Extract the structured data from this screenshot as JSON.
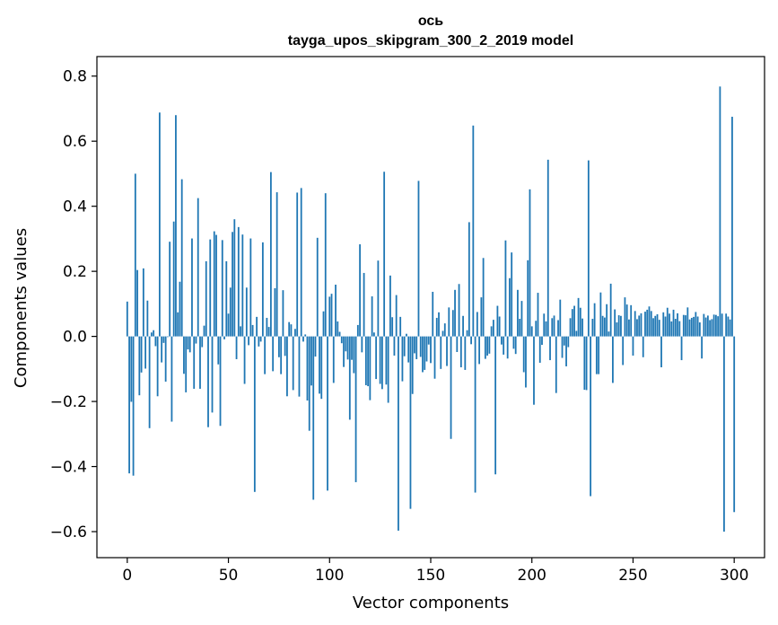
{
  "chart_data": {
    "type": "bar",
    "title_lines": [
      "ось",
      "tayga_upos_skipgram_300_2_2019 model"
    ],
    "xlabel": "Vector components",
    "ylabel": "Components values",
    "xlim": [
      -15,
      315
    ],
    "ylim": [
      -0.68,
      0.86
    ],
    "xticks": [
      0,
      50,
      100,
      150,
      200,
      250,
      300
    ],
    "xtick_labels": [
      "0",
      "50",
      "100",
      "150",
      "200",
      "250",
      "300"
    ],
    "yticks": [
      0.8,
      0.6,
      0.4,
      0.2,
      0.0,
      -0.2,
      -0.4,
      -0.6
    ],
    "ytick_labels": [
      "0.8",
      "0.6",
      "0.4",
      "0.2",
      "0.0",
      "−0.2",
      "−0.4",
      "−0.6"
    ],
    "grid": false,
    "bar_color": "#1f77b4",
    "x_start": 0,
    "values": [
      0.107,
      -0.421,
      -0.201,
      -0.428,
      0.5,
      0.204,
      -0.181,
      -0.111,
      0.209,
      -0.099,
      0.11,
      -0.282,
      0.012,
      0.019,
      -0.03,
      -0.184,
      0.688,
      -0.08,
      -0.02,
      -0.139,
      -0.002,
      0.291,
      -0.262,
      0.353,
      0.68,
      0.074,
      0.168,
      0.483,
      -0.115,
      -0.172,
      -0.04,
      -0.049,
      0.301,
      -0.161,
      -0.022,
      0.425,
      -0.161,
      -0.033,
      0.033,
      0.231,
      -0.279,
      0.298,
      -0.234,
      0.323,
      0.312,
      -0.086,
      -0.275,
      0.296,
      -0.009,
      0.231,
      0.07,
      0.15,
      0.321,
      0.36,
      -0.07,
      0.336,
      0.031,
      0.313,
      -0.146,
      0.15,
      -0.027,
      0.301,
      0.035,
      -0.478,
      0.06,
      -0.031,
      -0.016,
      0.289,
      -0.116,
      0.057,
      0.029,
      0.505,
      -0.107,
      0.148,
      0.443,
      -0.064,
      -0.116,
      0.142,
      -0.06,
      -0.184,
      0.044,
      0.037,
      -0.165,
      0.023,
      0.442,
      -0.185,
      0.456,
      -0.016,
      0.006,
      -0.197,
      -0.29,
      -0.151,
      -0.502,
      -0.062,
      0.303,
      -0.176,
      -0.192,
      0.077,
      0.44,
      -0.474,
      0.122,
      0.131,
      -0.143,
      0.159,
      0.046,
      0.014,
      -0.021,
      -0.094,
      -0.046,
      -0.071,
      -0.256,
      -0.072,
      -0.113,
      -0.448,
      0.035,
      0.283,
      -0.049,
      0.195,
      -0.15,
      -0.153,
      -0.196,
      0.123,
      0.012,
      -0.131,
      0.233,
      -0.146,
      -0.162,
      0.506,
      -0.148,
      -0.204,
      0.187,
      0.059,
      -0.059,
      0.127,
      -0.597,
      0.06,
      -0.138,
      -0.061,
      0.008,
      -0.08,
      -0.53,
      -0.177,
      -0.052,
      -0.07,
      0.478,
      -0.063,
      -0.11,
      -0.103,
      -0.077,
      -0.025,
      -0.082,
      0.137,
      -0.13,
      0.057,
      0.074,
      -0.1,
      0.017,
      0.04,
      -0.091,
      0.089,
      -0.315,
      0.081,
      0.143,
      -0.048,
      0.161,
      -0.095,
      0.063,
      -0.103,
      0.019,
      0.351,
      -0.024,
      0.648,
      -0.48,
      0.075,
      -0.085,
      0.12,
      0.241,
      -0.069,
      -0.059,
      -0.053,
      0.031,
      0.051,
      -0.424,
      0.094,
      0.061,
      -0.025,
      -0.056,
      0.295,
      -0.068,
      0.179,
      0.258,
      -0.038,
      -0.054,
      0.143,
      0.054,
      0.109,
      -0.11,
      -0.157,
      0.234,
      0.452,
      0.031,
      -0.21,
      0.048,
      0.134,
      -0.081,
      -0.026,
      0.07,
      0.046,
      0.543,
      -0.073,
      0.056,
      0.064,
      -0.174,
      0.05,
      0.113,
      -0.066,
      -0.028,
      -0.092,
      -0.033,
      0.056,
      0.084,
      0.094,
      0.017,
      0.118,
      0.088,
      0.055,
      -0.164,
      -0.165,
      0.541,
      -0.491,
      0.054,
      0.102,
      -0.116,
      -0.116,
      0.135,
      0.063,
      0.058,
      0.099,
      0.015,
      0.162,
      -0.143,
      0.083,
      0.043,
      0.065,
      0.063,
      -0.088,
      0.12,
      0.098,
      0.052,
      0.096,
      -0.059,
      0.078,
      0.053,
      0.064,
      0.071,
      -0.064,
      0.076,
      0.082,
      0.092,
      0.078,
      0.056,
      0.063,
      0.068,
      0.051,
      -0.095,
      0.074,
      0.061,
      0.088,
      0.07,
      0.046,
      0.082,
      0.054,
      0.071,
      0.047,
      -0.073,
      0.066,
      0.065,
      0.089,
      0.052,
      0.057,
      0.06,
      0.075,
      0.061,
      0.043,
      -0.068,
      0.069,
      0.058,
      0.064,
      0.05,
      0.053,
      0.067,
      0.066,
      0.062,
      0.768,
      0.07,
      -0.6,
      0.07,
      0.061,
      0.052,
      0.675,
      -0.54
    ]
  }
}
